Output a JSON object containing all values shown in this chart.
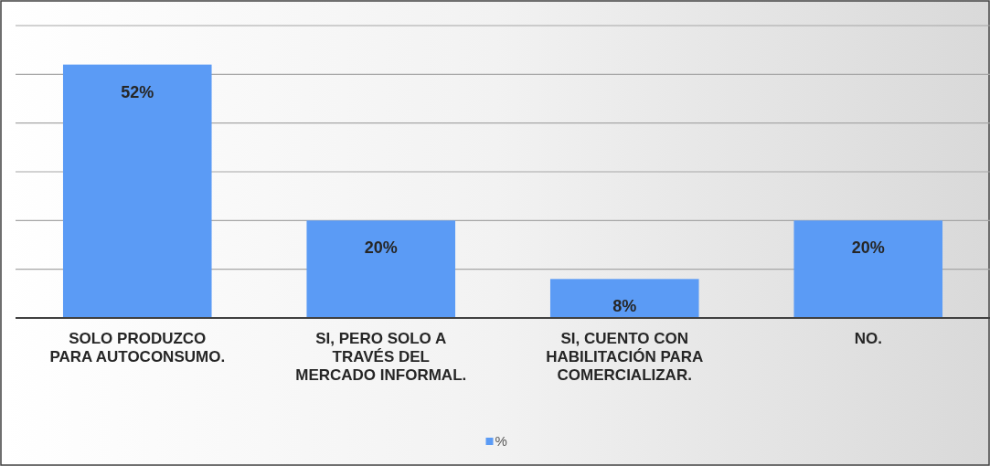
{
  "chart_data": {
    "type": "bar",
    "categories": [
      "SOLO PRODUZCO PARA AUTOCONSUMO.",
      "SI, PERO SOLO A TRAVÉS DEL MERCADO INFORMAL.",
      "SI, CUENTO CON HABILITACIÓN  PARA COMERCIALIZAR.",
      "NO."
    ],
    "series": [
      {
        "name": "%",
        "color": "#5b9bf5",
        "values": [
          52,
          20,
          8,
          20
        ],
        "value_labels": [
          "52%",
          "20%",
          "8%",
          "20%"
        ]
      }
    ],
    "ylim": [
      0,
      60
    ],
    "yticks": [
      {
        "value": 0,
        "label": null
      },
      {
        "value": 10,
        "label": null
      },
      {
        "value": 20,
        "label": null
      },
      {
        "value": 30,
        "label": null
      },
      {
        "value": 40,
        "label": null
      },
      {
        "value": 50,
        "label": null
      },
      {
        "value": 60,
        "label": null
      }
    ],
    "grid": "y",
    "tick_labels": "x",
    "legend": "bottom"
  }
}
